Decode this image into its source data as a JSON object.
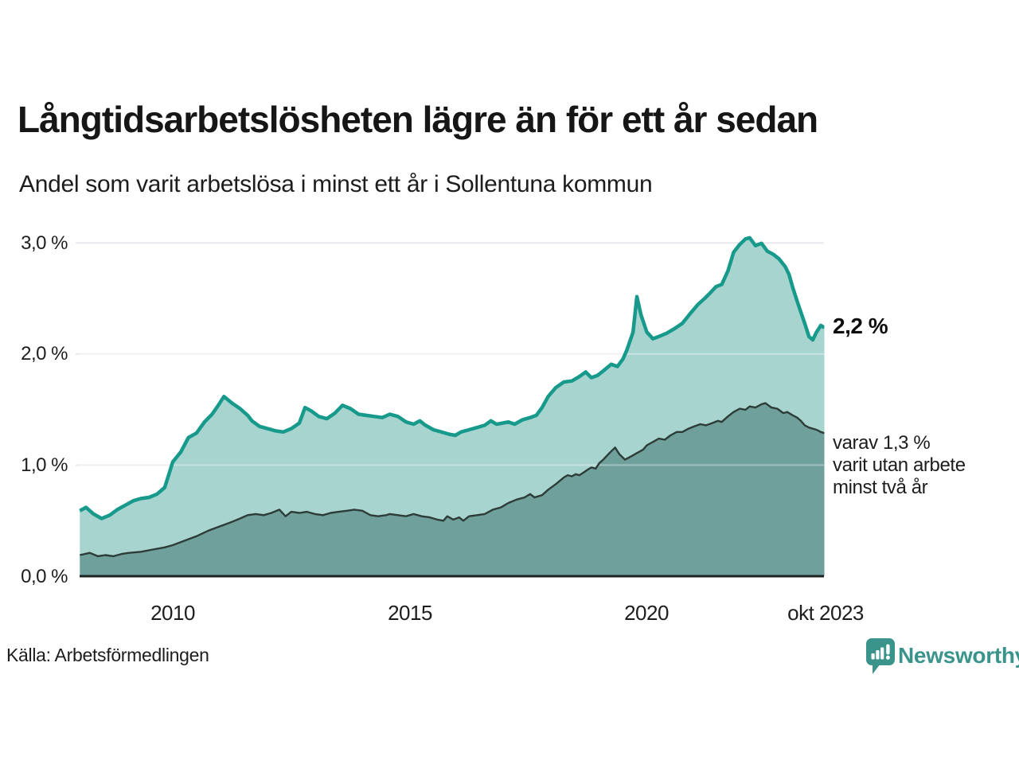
{
  "header": {
    "title": "Långtidsarbetslösheten lägre än för ett år sedan",
    "subtitle": "Andel som varit arbetslösa i minst ett år i Sollentuna kommun"
  },
  "annotations": {
    "total_end_label": "2,2 %",
    "two_year_line1": "varav 1,3 %",
    "two_year_line2": "varit utan arbete",
    "two_year_line3": "minst två år"
  },
  "footer": {
    "source": "Källa: Arbetsförmedlingen",
    "brand": "Newsworthy",
    "brand_color": "#3a948c"
  },
  "chart_data": {
    "type": "area",
    "title": "Långtidsarbetslösheten lägre än för ett år sedan",
    "subtitle": "Andel som varit arbetslösa i minst ett år i Sollentuna kommun",
    "unit": "%",
    "grid": true,
    "legend_position": "direct-labels-right",
    "x_axis": {
      "ticks": [
        "2010",
        "2015",
        "2020",
        "okt 2023"
      ],
      "tick_positions": [
        2010.0,
        2015.0,
        2020.0,
        2023.75
      ],
      "range": [
        2008.04,
        2023.75
      ]
    },
    "y_axis": {
      "ticks": [
        "0,0 %",
        "1,0 %",
        "2,0 %",
        "3,0 %"
      ],
      "tick_values": [
        0,
        1,
        2,
        3
      ],
      "range": [
        0,
        3.2
      ]
    },
    "colors": {
      "total_line": "#17998c",
      "total_fill": "#a7d4ce",
      "two_year_line": "#2d3c39",
      "two_year_fill": "#6fa09b",
      "gridline": "#e9e9ed",
      "axis_line": "#1c2422"
    },
    "series": [
      {
        "name": "Andel som varit arbetslösa i minst ett år",
        "end_value": 2.2,
        "end_label": "2,2 %",
        "points": [
          [
            2008.04,
            0.59
          ],
          [
            2008.17,
            0.62
          ],
          [
            2008.33,
            0.56
          ],
          [
            2008.5,
            0.52
          ],
          [
            2008.67,
            0.55
          ],
          [
            2008.83,
            0.6
          ],
          [
            2009.0,
            0.64
          ],
          [
            2009.17,
            0.68
          ],
          [
            2009.33,
            0.7
          ],
          [
            2009.5,
            0.71
          ],
          [
            2009.67,
            0.74
          ],
          [
            2009.83,
            0.8
          ],
          [
            2009.92,
            0.92
          ],
          [
            2010.0,
            1.03
          ],
          [
            2010.17,
            1.12
          ],
          [
            2010.33,
            1.25
          ],
          [
            2010.5,
            1.29
          ],
          [
            2010.67,
            1.39
          ],
          [
            2010.83,
            1.46
          ],
          [
            2010.96,
            1.54
          ],
          [
            2011.08,
            1.62
          ],
          [
            2011.25,
            1.56
          ],
          [
            2011.42,
            1.51
          ],
          [
            2011.58,
            1.45
          ],
          [
            2011.67,
            1.4
          ],
          [
            2011.83,
            1.35
          ],
          [
            2012.0,
            1.33
          ],
          [
            2012.17,
            1.31
          ],
          [
            2012.33,
            1.3
          ],
          [
            2012.5,
            1.33
          ],
          [
            2012.67,
            1.38
          ],
          [
            2012.79,
            1.52
          ],
          [
            2012.92,
            1.49
          ],
          [
            2013.08,
            1.44
          ],
          [
            2013.25,
            1.42
          ],
          [
            2013.42,
            1.47
          ],
          [
            2013.58,
            1.54
          ],
          [
            2013.75,
            1.51
          ],
          [
            2013.92,
            1.46
          ],
          [
            2014.08,
            1.45
          ],
          [
            2014.25,
            1.44
          ],
          [
            2014.42,
            1.43
          ],
          [
            2014.58,
            1.46
          ],
          [
            2014.75,
            1.44
          ],
          [
            2014.92,
            1.39
          ],
          [
            2015.08,
            1.37
          ],
          [
            2015.21,
            1.4
          ],
          [
            2015.33,
            1.36
          ],
          [
            2015.5,
            1.32
          ],
          [
            2015.67,
            1.3
          ],
          [
            2015.83,
            1.28
          ],
          [
            2015.96,
            1.27
          ],
          [
            2016.08,
            1.3
          ],
          [
            2016.25,
            1.32
          ],
          [
            2016.42,
            1.34
          ],
          [
            2016.58,
            1.36
          ],
          [
            2016.71,
            1.4
          ],
          [
            2016.83,
            1.37
          ],
          [
            2016.96,
            1.38
          ],
          [
            2017.08,
            1.39
          ],
          [
            2017.21,
            1.37
          ],
          [
            2017.38,
            1.41
          ],
          [
            2017.54,
            1.43
          ],
          [
            2017.67,
            1.45
          ],
          [
            2017.79,
            1.52
          ],
          [
            2017.92,
            1.62
          ],
          [
            2018.08,
            1.7
          ],
          [
            2018.25,
            1.75
          ],
          [
            2018.42,
            1.76
          ],
          [
            2018.58,
            1.8
          ],
          [
            2018.71,
            1.84
          ],
          [
            2018.83,
            1.79
          ],
          [
            2018.96,
            1.81
          ],
          [
            2019.08,
            1.85
          ],
          [
            2019.25,
            1.91
          ],
          [
            2019.38,
            1.89
          ],
          [
            2019.5,
            1.96
          ],
          [
            2019.58,
            2.04
          ],
          [
            2019.71,
            2.2
          ],
          [
            2019.79,
            2.52
          ],
          [
            2019.88,
            2.35
          ],
          [
            2020.0,
            2.2
          ],
          [
            2020.13,
            2.14
          ],
          [
            2020.25,
            2.16
          ],
          [
            2020.42,
            2.19
          ],
          [
            2020.58,
            2.23
          ],
          [
            2020.75,
            2.28
          ],
          [
            2020.92,
            2.37
          ],
          [
            2021.08,
            2.45
          ],
          [
            2021.21,
            2.5
          ],
          [
            2021.33,
            2.55
          ],
          [
            2021.46,
            2.61
          ],
          [
            2021.58,
            2.63
          ],
          [
            2021.71,
            2.75
          ],
          [
            2021.83,
            2.92
          ],
          [
            2021.96,
            2.99
          ],
          [
            2022.08,
            3.04
          ],
          [
            2022.17,
            3.05
          ],
          [
            2022.29,
            2.98
          ],
          [
            2022.42,
            3.0
          ],
          [
            2022.54,
            2.93
          ],
          [
            2022.67,
            2.9
          ],
          [
            2022.79,
            2.86
          ],
          [
            2022.92,
            2.79
          ],
          [
            2023.0,
            2.72
          ],
          [
            2023.08,
            2.6
          ],
          [
            2023.17,
            2.48
          ],
          [
            2023.25,
            2.38
          ],
          [
            2023.33,
            2.28
          ],
          [
            2023.42,
            2.16
          ],
          [
            2023.5,
            2.13
          ],
          [
            2023.58,
            2.2
          ],
          [
            2023.67,
            2.26
          ],
          [
            2023.75,
            2.24
          ]
        ]
      },
      {
        "name": "varav utan arbete minst två år",
        "end_value": 1.3,
        "end_label": "varav 1,3 % varit utan arbete minst två år",
        "points": [
          [
            2008.04,
            0.19
          ],
          [
            2008.25,
            0.21
          ],
          [
            2008.42,
            0.18
          ],
          [
            2008.58,
            0.19
          ],
          [
            2008.75,
            0.18
          ],
          [
            2008.92,
            0.2
          ],
          [
            2009.08,
            0.21
          ],
          [
            2009.33,
            0.22
          ],
          [
            2009.58,
            0.24
          ],
          [
            2009.83,
            0.26
          ],
          [
            2010.0,
            0.28
          ],
          [
            2010.25,
            0.32
          ],
          [
            2010.5,
            0.36
          ],
          [
            2010.75,
            0.41
          ],
          [
            2011.0,
            0.45
          ],
          [
            2011.25,
            0.49
          ],
          [
            2011.42,
            0.52
          ],
          [
            2011.58,
            0.55
          ],
          [
            2011.75,
            0.56
          ],
          [
            2011.92,
            0.55
          ],
          [
            2012.08,
            0.57
          ],
          [
            2012.25,
            0.6
          ],
          [
            2012.38,
            0.54
          ],
          [
            2012.5,
            0.58
          ],
          [
            2012.67,
            0.57
          ],
          [
            2012.83,
            0.58
          ],
          [
            2013.0,
            0.56
          ],
          [
            2013.17,
            0.55
          ],
          [
            2013.33,
            0.57
          ],
          [
            2013.5,
            0.58
          ],
          [
            2013.67,
            0.59
          ],
          [
            2013.83,
            0.6
          ],
          [
            2014.0,
            0.59
          ],
          [
            2014.17,
            0.55
          ],
          [
            2014.33,
            0.54
          ],
          [
            2014.5,
            0.55
          ],
          [
            2014.58,
            0.56
          ],
          [
            2014.75,
            0.55
          ],
          [
            2014.92,
            0.54
          ],
          [
            2015.08,
            0.56
          ],
          [
            2015.25,
            0.54
          ],
          [
            2015.42,
            0.53
          ],
          [
            2015.58,
            0.51
          ],
          [
            2015.71,
            0.5
          ],
          [
            2015.79,
            0.54
          ],
          [
            2015.92,
            0.51
          ],
          [
            2016.04,
            0.53
          ],
          [
            2016.13,
            0.5
          ],
          [
            2016.25,
            0.54
          ],
          [
            2016.42,
            0.55
          ],
          [
            2016.58,
            0.56
          ],
          [
            2016.75,
            0.6
          ],
          [
            2016.92,
            0.62
          ],
          [
            2017.08,
            0.66
          ],
          [
            2017.25,
            0.69
          ],
          [
            2017.42,
            0.71
          ],
          [
            2017.54,
            0.74
          ],
          [
            2017.63,
            0.71
          ],
          [
            2017.79,
            0.73
          ],
          [
            2017.92,
            0.78
          ],
          [
            2018.08,
            0.83
          ],
          [
            2018.25,
            0.89
          ],
          [
            2018.33,
            0.91
          ],
          [
            2018.42,
            0.9
          ],
          [
            2018.5,
            0.92
          ],
          [
            2018.58,
            0.91
          ],
          [
            2018.75,
            0.96
          ],
          [
            2018.83,
            0.98
          ],
          [
            2018.92,
            0.97
          ],
          [
            2019.0,
            1.02
          ],
          [
            2019.08,
            1.05
          ],
          [
            2019.21,
            1.11
          ],
          [
            2019.33,
            1.16
          ],
          [
            2019.42,
            1.1
          ],
          [
            2019.54,
            1.05
          ],
          [
            2019.67,
            1.08
          ],
          [
            2019.79,
            1.11
          ],
          [
            2019.92,
            1.14
          ],
          [
            2020.0,
            1.18
          ],
          [
            2020.13,
            1.21
          ],
          [
            2020.25,
            1.24
          ],
          [
            2020.38,
            1.23
          ],
          [
            2020.5,
            1.27
          ],
          [
            2020.63,
            1.3
          ],
          [
            2020.75,
            1.3
          ],
          [
            2020.88,
            1.33
          ],
          [
            2021.0,
            1.35
          ],
          [
            2021.13,
            1.37
          ],
          [
            2021.25,
            1.36
          ],
          [
            2021.38,
            1.38
          ],
          [
            2021.5,
            1.4
          ],
          [
            2021.58,
            1.39
          ],
          [
            2021.71,
            1.44
          ],
          [
            2021.83,
            1.48
          ],
          [
            2021.96,
            1.51
          ],
          [
            2022.08,
            1.5
          ],
          [
            2022.17,
            1.53
          ],
          [
            2022.29,
            1.52
          ],
          [
            2022.42,
            1.55
          ],
          [
            2022.5,
            1.56
          ],
          [
            2022.63,
            1.52
          ],
          [
            2022.75,
            1.51
          ],
          [
            2022.88,
            1.47
          ],
          [
            2022.96,
            1.48
          ],
          [
            2023.08,
            1.45
          ],
          [
            2023.17,
            1.43
          ],
          [
            2023.25,
            1.4
          ],
          [
            2023.33,
            1.36
          ],
          [
            2023.42,
            1.34
          ],
          [
            2023.5,
            1.33
          ],
          [
            2023.58,
            1.32
          ],
          [
            2023.67,
            1.3
          ],
          [
            2023.75,
            1.29
          ]
        ]
      }
    ]
  }
}
